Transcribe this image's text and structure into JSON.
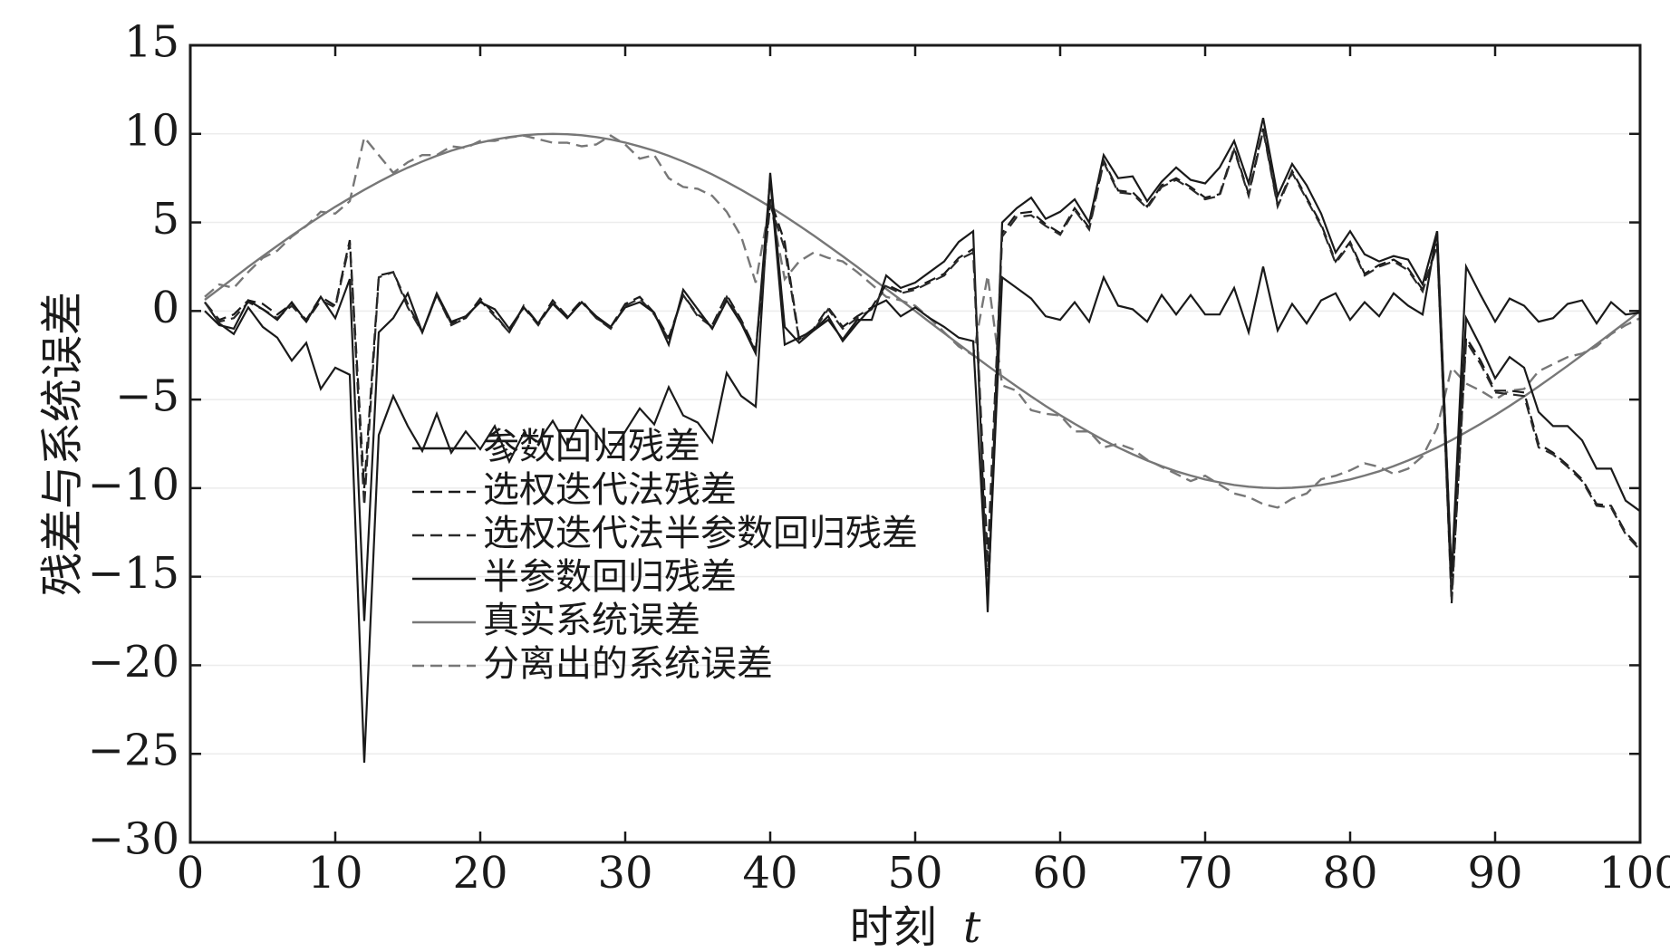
{
  "chart_data": {
    "type": "line",
    "title": "",
    "xlabel": "时刻",
    "xlabel_var": "t",
    "ylabel": "残差与系统误差",
    "xlim": [
      0,
      100
    ],
    "ylim": [
      -30,
      15
    ],
    "xticks": [
      0,
      10,
      20,
      30,
      40,
      50,
      60,
      70,
      80,
      90,
      100
    ],
    "xtick_labels": [
      "0",
      "10",
      "20",
      "30",
      "40",
      "50",
      "60",
      "70",
      "80",
      "90",
      "100"
    ],
    "yticks": [
      15,
      10,
      5,
      0,
      -5,
      -10,
      -15,
      -20,
      -25,
      -30
    ],
    "ytick_labels": [
      "15",
      "10",
      "5",
      "0",
      "−5",
      "−10",
      "−15",
      "−20",
      "−25",
      "−30"
    ],
    "grid": "horizontal",
    "legend_position": "lower-left",
    "series": [
      {
        "name": "参数回归残差",
        "color": "#1a1a1a",
        "dash": "solid",
        "x": [
          1,
          2,
          3,
          4,
          5,
          6,
          7,
          8,
          9,
          10,
          11,
          12,
          13,
          14,
          15,
          16,
          17,
          18,
          19,
          20,
          21,
          22,
          23,
          24,
          25,
          26,
          27,
          28,
          29,
          30,
          31,
          32,
          33,
          34,
          35,
          36,
          37,
          38,
          39,
          40,
          41,
          42,
          43,
          44,
          45,
          46,
          47,
          48,
          49,
          50,
          51,
          52,
          53,
          54,
          55,
          56,
          57,
          58,
          59,
          60,
          61,
          62,
          63,
          64,
          65,
          66,
          67,
          68,
          69,
          70,
          71,
          72,
          73,
          74,
          75,
          76,
          77,
          78,
          79,
          80,
          81,
          82,
          83,
          84,
          85,
          86,
          87,
          88,
          89,
          90,
          91,
          92,
          93,
          94,
          95,
          96,
          97,
          98,
          99,
          100
        ],
        "y": [
          0.5,
          -0.7,
          -1.3,
          0.2,
          -0.9,
          -1.5,
          -2.8,
          -1.8,
          -4.4,
          -3.2,
          -3.6,
          -25.5,
          -7,
          -4.8,
          -6.5,
          -7.9,
          -5.8,
          -8,
          -6.8,
          -7.8,
          -6.5,
          -8.5,
          -6.9,
          -7.4,
          -6.2,
          -7.6,
          -5.9,
          -6.9,
          -8.1,
          -6.8,
          -5.5,
          -6.4,
          -4.3,
          -5.9,
          -6.3,
          -7.4,
          -3.5,
          -4.8,
          -5.4,
          7.8,
          -0.9,
          -1.8,
          -1.1,
          -0.5,
          -1.6,
          -0.5,
          -0.5,
          2,
          1.3,
          1.6,
          2.2,
          2.8,
          3.9,
          4.5,
          -17,
          5,
          5.8,
          6.4,
          5.2,
          5.6,
          6.3,
          5,
          8.8,
          7.5,
          7.6,
          6.2,
          7.3,
          8.1,
          7.4,
          7.2,
          8.1,
          9.6,
          7.2,
          10.9,
          6.5,
          8.3,
          7.1,
          5.5,
          3.3,
          4.5,
          3.2,
          2.8,
          3.1,
          2.9,
          1.5,
          4.5,
          -15,
          -0.4,
          -2,
          -3.8,
          -2.6,
          -3.2,
          -5.7,
          -6.5,
          -6.5,
          -7.3,
          -8.9,
          -8.9,
          -10.7,
          -11.3
        ]
      },
      {
        "name": "选权迭代法残差",
        "color": "#1a1a1a",
        "dash": "dashed",
        "x": [
          1,
          2,
          3,
          4,
          5,
          6,
          7,
          8,
          9,
          10,
          11,
          12,
          13,
          14,
          15,
          16,
          17,
          18,
          19,
          20,
          21,
          22,
          23,
          24,
          25,
          26,
          27,
          28,
          29,
          30,
          31,
          32,
          33,
          34,
          35,
          36,
          37,
          38,
          39,
          40,
          41,
          42,
          43,
          44,
          45,
          46,
          47,
          48,
          49,
          50,
          51,
          52,
          53,
          54,
          55,
          56,
          57,
          58,
          59,
          60,
          61,
          62,
          63,
          64,
          65,
          66,
          67,
          68,
          69,
          70,
          71,
          72,
          73,
          74,
          75,
          76,
          77,
          78,
          79,
          80,
          81,
          82,
          83,
          84,
          85,
          86,
          87,
          88,
          89,
          90,
          91,
          92,
          93,
          94,
          95,
          96,
          97,
          98,
          99,
          100
        ],
        "y": [
          0.5,
          -0.5,
          -0.2,
          0.6,
          0.4,
          -0.2,
          0.4,
          -0.5,
          0.8,
          0.3,
          4,
          -10,
          2,
          2.2,
          0.4,
          -1.2,
          0.9,
          -0.7,
          -0.4,
          0.7,
          -0.2,
          -1.2,
          0.3,
          -0.7,
          0.6,
          -0.3,
          0.6,
          -0.4,
          -0.9,
          0.4,
          0.8,
          -0.1,
          -1.5,
          0.9,
          -0.2,
          -0.8,
          0.9,
          -0.5,
          -2.2,
          6.3,
          3.9,
          -1.6,
          -1,
          0.2,
          -0.9,
          -0.3,
          0.2,
          1.5,
          1.1,
          1.3,
          1.7,
          2.1,
          3,
          3.5,
          -14,
          4.4,
          5.5,
          5.6,
          4.9,
          4.4,
          5.8,
          4.7,
          8.5,
          6.8,
          6.7,
          5.9,
          7.1,
          7.5,
          7,
          6.4,
          6.6,
          9.2,
          6.6,
          10.3,
          6,
          7.9,
          6.4,
          4.9,
          2.8,
          3.9,
          2.1,
          2.6,
          2.9,
          2.4,
          1.2,
          3.8,
          -16.5,
          -1.5,
          -2.8,
          -4.5,
          -4.5,
          -4.6,
          -7.5,
          -8,
          -8.7,
          -9.5,
          -10.9,
          -11,
          -12.5,
          -13.4
        ]
      },
      {
        "name": "选权迭代法半参数回归残差",
        "color": "#2a2a2a",
        "dash": "dashed",
        "x": [
          1,
          2,
          3,
          4,
          5,
          6,
          7,
          8,
          9,
          10,
          11,
          12,
          13,
          14,
          15,
          16,
          17,
          18,
          19,
          20,
          21,
          22,
          23,
          24,
          25,
          26,
          27,
          28,
          29,
          30,
          31,
          32,
          33,
          34,
          35,
          36,
          37,
          38,
          39,
          40,
          41,
          42,
          43,
          44,
          45,
          46,
          47,
          48,
          49,
          50,
          51,
          52,
          53,
          54,
          55,
          56,
          57,
          58,
          59,
          60,
          61,
          62,
          63,
          64,
          65,
          66,
          67,
          68,
          69,
          70,
          71,
          72,
          73,
          74,
          75,
          76,
          77,
          78,
          79,
          80,
          81,
          82,
          83,
          84,
          85,
          86,
          87,
          88,
          89,
          90,
          91,
          92,
          93,
          94,
          95,
          96,
          97,
          98,
          99,
          100
        ],
        "y": [
          0.5,
          -0.6,
          -0.4,
          0.5,
          0.1,
          -0.4,
          0.3,
          -0.6,
          0.6,
          0.2,
          3.8,
          -11,
          1.9,
          2.2,
          0.2,
          -1.2,
          0.9,
          -0.8,
          -0.4,
          0.6,
          -0.3,
          -1.2,
          0.2,
          -0.8,
          0.5,
          -0.4,
          0.5,
          -0.4,
          -1,
          0.3,
          0.7,
          -0.2,
          -1.6,
          0.9,
          -0.3,
          -0.9,
          0.8,
          -0.6,
          -2.3,
          6,
          3.5,
          -1.7,
          -1.1,
          0.1,
          -1,
          -0.4,
          0.1,
          1.4,
          1,
          1.2,
          1.6,
          2,
          2.9,
          3.3,
          -15,
          4.2,
          5.3,
          5.4,
          4.8,
          4.3,
          5.7,
          4.6,
          8.4,
          6.7,
          6.6,
          5.8,
          7,
          7.4,
          6.9,
          6.3,
          6.5,
          9.1,
          6.5,
          10.2,
          5.9,
          7.8,
          6.3,
          4.8,
          2.7,
          3.8,
          2,
          2.5,
          2.8,
          2.3,
          1.1,
          3.7,
          -16.3,
          -1.7,
          -3,
          -4.6,
          -4.7,
          -4.8,
          -7.7,
          -8.1,
          -8.8,
          -9.6,
          -11,
          -11.1,
          -12.6,
          -13.5
        ]
      },
      {
        "name": "半参数回归残差",
        "color": "#1a1a1a",
        "dash": "solid",
        "x": [
          1,
          2,
          3,
          4,
          5,
          6,
          7,
          8,
          9,
          10,
          11,
          12,
          13,
          14,
          15,
          16,
          17,
          18,
          19,
          20,
          21,
          22,
          23,
          24,
          25,
          26,
          27,
          28,
          29,
          30,
          31,
          32,
          33,
          34,
          35,
          36,
          37,
          38,
          39,
          40,
          41,
          42,
          43,
          44,
          45,
          46,
          47,
          48,
          49,
          50,
          51,
          52,
          53,
          54,
          55,
          56,
          57,
          58,
          59,
          60,
          61,
          62,
          63,
          64,
          65,
          66,
          67,
          68,
          69,
          70,
          71,
          72,
          73,
          74,
          75,
          76,
          77,
          78,
          79,
          80,
          81,
          82,
          83,
          84,
          85,
          86,
          87,
          88,
          89,
          90,
          91,
          92,
          93,
          94,
          95,
          96,
          97,
          98,
          99,
          100
        ],
        "y": [
          0,
          -0.8,
          -1,
          0.6,
          0.1,
          -0.5,
          0.5,
          -0.6,
          0.8,
          -0.4,
          1.8,
          -17.5,
          -1.2,
          -0.4,
          1,
          -1.2,
          1,
          -0.6,
          -0.3,
          0.5,
          0.1,
          -1,
          0.2,
          -0.7,
          0.4,
          -0.4,
          0.5,
          -0.3,
          -0.9,
          0.2,
          0.5,
          -0.1,
          -1.9,
          1.2,
          0.1,
          -1,
          0.6,
          -0.7,
          -2.4,
          7.5,
          -1.9,
          -1.5,
          -1.1,
          -0.3,
          -1.7,
          -0.7,
          0.2,
          0.6,
          -0.3,
          0.2,
          -0.4,
          -0.9,
          -1.5,
          -1.7,
          -16.5,
          1.9,
          1.3,
          0.7,
          -0.3,
          -0.5,
          0.5,
          -0.6,
          1.9,
          0.3,
          0.1,
          -0.6,
          0.9,
          -0.2,
          0.9,
          -0.2,
          -0.2,
          1.3,
          -1.2,
          2.5,
          -1.1,
          0.4,
          -0.7,
          0.6,
          1,
          -0.5,
          0.5,
          -0.3,
          1,
          0.3,
          -0.2,
          4.5,
          -15,
          2.5,
          0.9,
          -0.6,
          0.7,
          0.3,
          -0.6,
          -0.4,
          0.4,
          0.6,
          -0.7,
          0.5,
          -0.2,
          -0.1
        ]
      },
      {
        "name": "真实系统误差",
        "color": "#777777",
        "dash": "solid",
        "x": [
          1,
          2,
          3,
          4,
          5,
          6,
          7,
          8,
          9,
          10,
          11,
          12,
          13,
          14,
          15,
          16,
          17,
          18,
          19,
          20,
          21,
          22,
          23,
          24,
          25,
          26,
          27,
          28,
          29,
          30,
          31,
          32,
          33,
          34,
          35,
          36,
          37,
          38,
          39,
          40,
          41,
          42,
          43,
          44,
          45,
          46,
          47,
          48,
          49,
          50,
          51,
          52,
          53,
          54,
          55,
          56,
          57,
          58,
          59,
          60,
          61,
          62,
          63,
          64,
          65,
          66,
          67,
          68,
          69,
          70,
          71,
          72,
          73,
          74,
          75,
          76,
          77,
          78,
          79,
          80,
          81,
          82,
          83,
          84,
          85,
          86,
          87,
          88,
          89,
          90,
          91,
          92,
          93,
          94,
          95,
          96,
          97,
          98,
          99,
          100
        ],
        "y": [
          0.63,
          1.25,
          1.87,
          2.49,
          3.09,
          3.68,
          4.26,
          4.82,
          5.36,
          5.88,
          6.37,
          6.84,
          7.29,
          7.71,
          8.09,
          8.44,
          8.76,
          9.05,
          9.29,
          9.51,
          9.68,
          9.82,
          9.92,
          9.98,
          10,
          9.98,
          9.92,
          9.82,
          9.68,
          9.51,
          9.29,
          9.05,
          8.76,
          8.44,
          8.09,
          7.71,
          7.29,
          6.84,
          6.37,
          5.88,
          5.36,
          4.82,
          4.26,
          3.68,
          3.09,
          2.49,
          1.87,
          1.25,
          0.63,
          0,
          -0.63,
          -1.25,
          -1.87,
          -2.49,
          -3.09,
          -3.68,
          -4.26,
          -4.82,
          -5.36,
          -5.88,
          -6.37,
          -6.84,
          -7.29,
          -7.71,
          -8.09,
          -8.44,
          -8.76,
          -9.05,
          -9.29,
          -9.51,
          -9.68,
          -9.82,
          -9.92,
          -9.98,
          -10,
          -9.98,
          -9.92,
          -9.82,
          -9.68,
          -9.51,
          -9.29,
          -9.05,
          -8.76,
          -8.44,
          -8.09,
          -7.71,
          -7.29,
          -6.84,
          -6.37,
          -5.88,
          -5.36,
          -4.82,
          -4.26,
          -3.68,
          -3.09,
          -2.49,
          -1.87,
          -1.25,
          -0.63,
          0
        ]
      },
      {
        "name": "分离出的系统误差",
        "color": "#777777",
        "dash": "dashed",
        "x": [
          1,
          2,
          3,
          4,
          5,
          6,
          7,
          8,
          9,
          10,
          11,
          12,
          13,
          14,
          15,
          16,
          17,
          18,
          19,
          20,
          21,
          22,
          23,
          24,
          25,
          26,
          27,
          28,
          29,
          30,
          31,
          32,
          33,
          34,
          35,
          36,
          37,
          38,
          39,
          40,
          41,
          42,
          43,
          44,
          45,
          46,
          47,
          48,
          49,
          50,
          51,
          52,
          53,
          54,
          55,
          56,
          57,
          58,
          59,
          60,
          61,
          62,
          63,
          64,
          65,
          66,
          67,
          68,
          69,
          70,
          71,
          72,
          73,
          74,
          75,
          76,
          77,
          78,
          79,
          80,
          81,
          82,
          83,
          84,
          85,
          86,
          87,
          88,
          89,
          90,
          91,
          92,
          93,
          94,
          95,
          96,
          97,
          98,
          99,
          100
        ],
        "y": [
          0.8,
          1.5,
          1.3,
          2.2,
          3,
          3.4,
          4.2,
          4.8,
          5.6,
          5.5,
          6.2,
          9.8,
          8.8,
          7.8,
          8.4,
          8.8,
          8.8,
          9.3,
          9.2,
          9.6,
          9.6,
          9.8,
          9.9,
          9.7,
          9.5,
          9.5,
          9.3,
          9.4,
          9.9,
          9.4,
          8.6,
          8.8,
          7.5,
          7,
          6.9,
          6.5,
          5.6,
          4.2,
          1.6,
          6.2,
          1.8,
          2.8,
          3.3,
          3,
          2.8,
          2.2,
          1.5,
          0.8,
          0.6,
          0.3,
          -0.4,
          -1.2,
          -2,
          -2.5,
          2,
          -4.2,
          -4.5,
          -5.6,
          -5.8,
          -5.9,
          -6.8,
          -6.8,
          -7.7,
          -7.5,
          -7.8,
          -8.4,
          -8.8,
          -9.2,
          -9.6,
          -9.3,
          -9.8,
          -10.3,
          -10.5,
          -10.9,
          -11.1,
          -10.6,
          -10.3,
          -9.5,
          -9.3,
          -9,
          -8.6,
          -8.8,
          -9.2,
          -8.9,
          -8.2,
          -6.6,
          -3.2,
          -4.1,
          -4.5,
          -5,
          -4.5,
          -4.4,
          -3.4,
          -3,
          -2.6,
          -2.4,
          -2,
          -1.3,
          -0.8,
          -0.4
        ]
      }
    ]
  }
}
